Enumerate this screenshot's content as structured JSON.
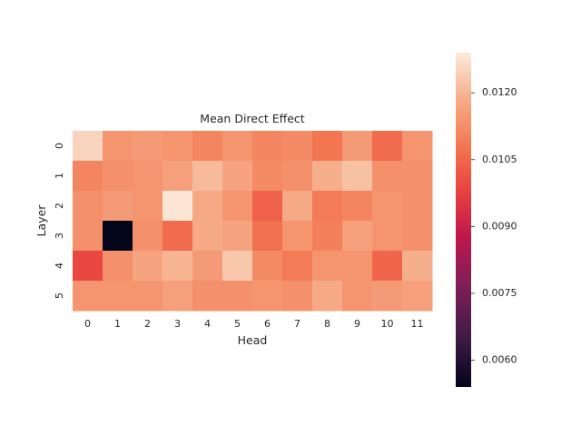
{
  "chart_data": {
    "type": "heatmap",
    "title": "Mean Direct Effect",
    "xlabel": "Head",
    "ylabel": "Layer",
    "x_categories": [
      "0",
      "1",
      "2",
      "3",
      "4",
      "5",
      "6",
      "7",
      "8",
      "9",
      "10",
      "11"
    ],
    "y_categories": [
      "0",
      "1",
      "2",
      "3",
      "4",
      "5"
    ],
    "values": [
      [
        0.0125,
        0.0114,
        0.0115,
        0.0114,
        0.0111,
        0.0114,
        0.0111,
        0.0112,
        0.0108,
        0.0115,
        0.0106,
        0.0114
      ],
      [
        0.0111,
        0.0113,
        0.0114,
        0.0116,
        0.0121,
        0.0117,
        0.0112,
        0.0113,
        0.0119,
        0.0122,
        0.0113,
        0.0113
      ],
      [
        0.0113,
        0.0115,
        0.0114,
        0.0128,
        0.0118,
        0.0114,
        0.0104,
        0.0118,
        0.0109,
        0.0111,
        0.0114,
        0.0113
      ],
      [
        0.0113,
        0.0054,
        0.0113,
        0.0106,
        0.0118,
        0.0117,
        0.0107,
        0.0114,
        0.011,
        0.0116,
        0.0114,
        0.0113
      ],
      [
        0.0099,
        0.0113,
        0.0117,
        0.012,
        0.0115,
        0.0123,
        0.0112,
        0.0109,
        0.0114,
        0.0114,
        0.0105,
        0.0119
      ],
      [
        0.0114,
        0.0114,
        0.0114,
        0.0116,
        0.0113,
        0.0113,
        0.0114,
        0.0113,
        0.0118,
        0.0114,
        0.0115,
        0.0116
      ]
    ],
    "colorbar": {
      "vmin": 0.0054,
      "vmax": 0.0129,
      "ticks": [
        0.006,
        0.0075,
        0.009,
        0.0105,
        0.012
      ],
      "tick_labels": [
        "0.0060",
        "0.0075",
        "0.0090",
        "0.0105",
        "0.0120"
      ],
      "colormap": "rocket"
    },
    "grid": false
  }
}
